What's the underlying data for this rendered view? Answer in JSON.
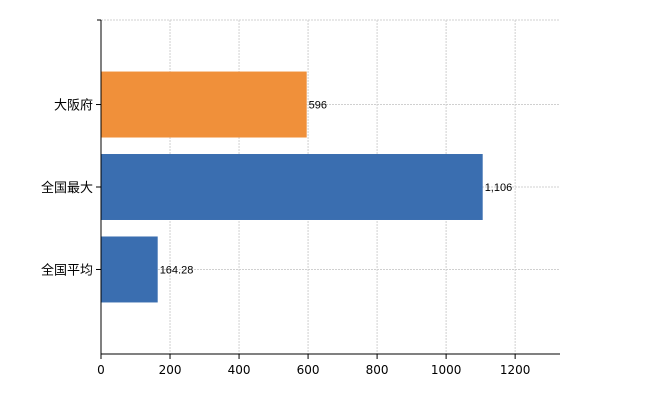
{
  "chart_data": {
    "type": "bar",
    "orientation": "horizontal",
    "categories": [
      "大阪府",
      "全国最大",
      "全国平均"
    ],
    "values": [
      596,
      1106,
      164.28
    ],
    "value_labels": [
      "596",
      "1,106",
      "164.28"
    ],
    "bar_colors": [
      "#f0903a",
      "#3a6eb0",
      "#3a6eb0"
    ],
    "title": "",
    "xlabel": "",
    "ylabel": "",
    "xlim": [
      0,
      1330
    ],
    "x_ticks": [
      0,
      200,
      400,
      600,
      800,
      1000,
      1200
    ],
    "x_tick_labels": [
      "0",
      "200",
      "400",
      "600",
      "800",
      "1000",
      "1200"
    ],
    "grid": true,
    "legend": "none"
  }
}
